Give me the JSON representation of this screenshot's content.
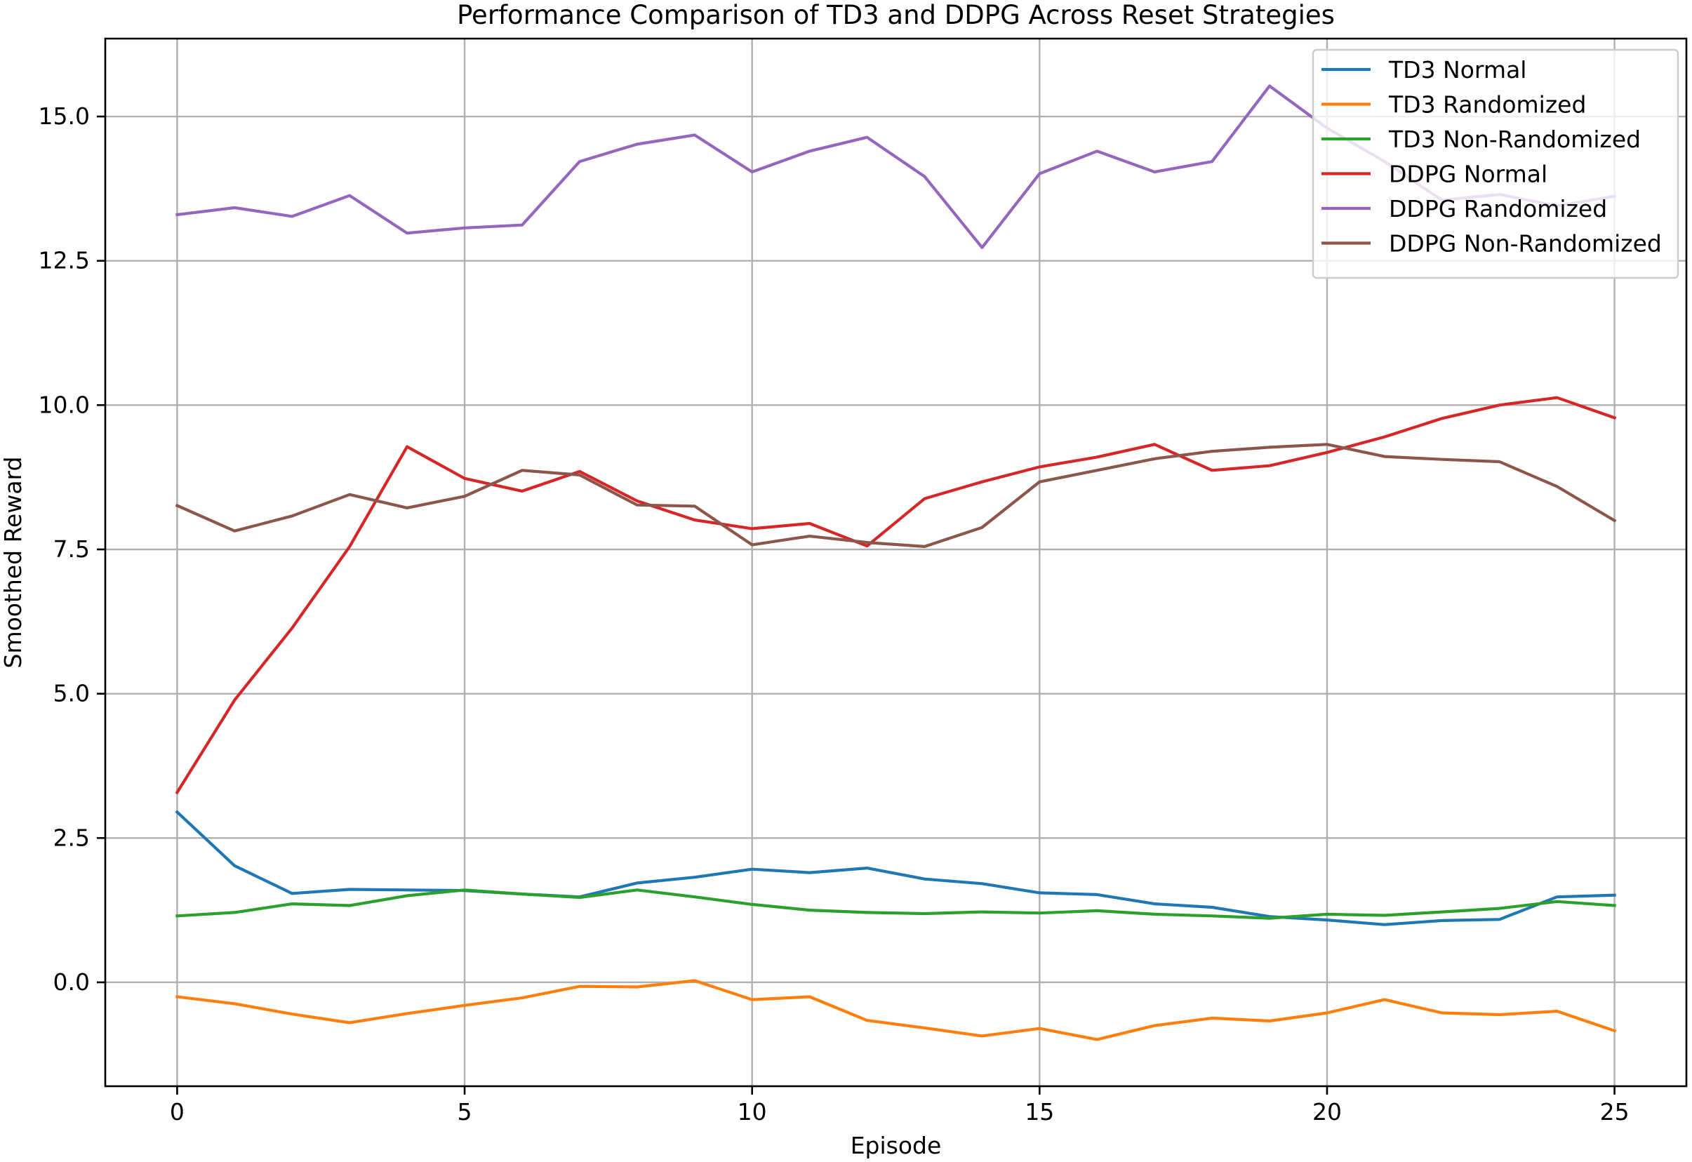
{
  "chart_data": {
    "type": "line",
    "title": "Performance Comparison of TD3 and DDPG Across Reset Strategies",
    "xlabel": "Episode",
    "ylabel": "Smoothed Reward",
    "xlim": [
      -1.25,
      26.25
    ],
    "ylim": [
      -1.8,
      16.35
    ],
    "xticks": [
      0,
      5,
      10,
      15,
      20,
      25
    ],
    "xtick_labels": [
      "0",
      "5",
      "10",
      "15",
      "20",
      "25"
    ],
    "yticks": [
      0.0,
      2.5,
      5.0,
      7.5,
      10.0,
      12.5,
      15.0
    ],
    "ytick_labels": [
      "0.0",
      "2.5",
      "5.0",
      "7.5",
      "10.0",
      "12.5",
      "15.0"
    ],
    "grid": true,
    "legend_position": "top-right",
    "x": [
      0,
      1,
      2,
      3,
      4,
      5,
      6,
      7,
      8,
      9,
      10,
      11,
      12,
      13,
      14,
      15,
      16,
      17,
      18,
      19,
      20,
      21,
      22,
      23,
      24,
      25
    ],
    "series": [
      {
        "name": "TD3 Normal",
        "color": "#1f77b4",
        "values": [
          2.95,
          2.02,
          1.54,
          1.61,
          1.6,
          1.59,
          1.53,
          1.48,
          1.72,
          1.82,
          1.96,
          1.9,
          1.98,
          1.79,
          1.71,
          1.55,
          1.52,
          1.36,
          1.3,
          1.14,
          1.08,
          1.0,
          1.07,
          1.09,
          1.48,
          1.51
        ]
      },
      {
        "name": "TD3 Randomized",
        "color": "#ff7f0e",
        "values": [
          -0.25,
          -0.37,
          -0.55,
          -0.7,
          -0.54,
          -0.4,
          -0.27,
          -0.07,
          -0.08,
          0.03,
          -0.3,
          -0.25,
          -0.66,
          -0.79,
          -0.93,
          -0.8,
          -0.99,
          -0.75,
          -0.62,
          -0.67,
          -0.53,
          -0.3,
          -0.53,
          -0.56,
          -0.5,
          -0.84
        ]
      },
      {
        "name": "TD3 Non-Randomized",
        "color": "#2ca02c",
        "values": [
          1.15,
          1.21,
          1.36,
          1.33,
          1.5,
          1.6,
          1.53,
          1.47,
          1.6,
          1.48,
          1.35,
          1.25,
          1.21,
          1.19,
          1.22,
          1.2,
          1.24,
          1.18,
          1.15,
          1.11,
          1.18,
          1.16,
          1.22,
          1.28,
          1.4,
          1.33
        ]
      },
      {
        "name": "DDPG Normal",
        "color": "#d62728",
        "values": [
          3.29,
          4.89,
          6.14,
          7.55,
          9.28,
          8.73,
          8.51,
          8.85,
          8.34,
          8.01,
          7.86,
          7.95,
          7.56,
          8.38,
          8.67,
          8.93,
          9.1,
          9.32,
          8.87,
          8.95,
          9.18,
          9.45,
          9.77,
          10.0,
          10.13,
          9.78
        ]
      },
      {
        "name": "DDPG Randomized",
        "color": "#9467bd",
        "values": [
          13.3,
          13.42,
          13.27,
          13.63,
          12.98,
          13.07,
          13.12,
          14.22,
          14.52,
          14.68,
          14.04,
          14.4,
          14.64,
          13.96,
          12.73,
          14.01,
          14.4,
          14.04,
          14.22,
          15.53,
          14.8,
          14.22,
          13.55,
          13.65,
          13.45,
          13.62
        ]
      },
      {
        "name": "DDPG Non-Randomized",
        "color": "#8c564b",
        "values": [
          8.26,
          7.82,
          8.08,
          8.45,
          8.22,
          8.42,
          8.87,
          8.79,
          8.27,
          8.25,
          7.58,
          7.73,
          7.62,
          7.55,
          7.88,
          8.67,
          8.87,
          9.07,
          9.2,
          9.27,
          9.32,
          9.11,
          9.06,
          9.02,
          8.59,
          8.0
        ]
      }
    ]
  }
}
